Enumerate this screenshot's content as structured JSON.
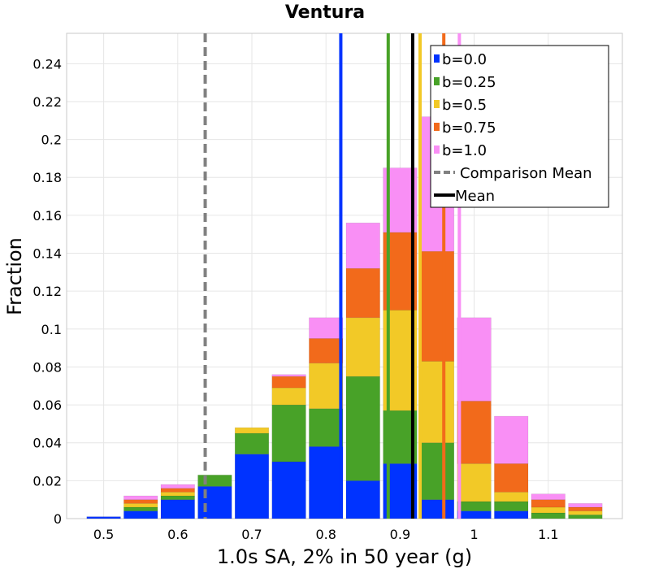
{
  "chart_data": {
    "type": "bar",
    "stacked": true,
    "title": "Ventura",
    "xlabel": "1.0s SA, 2% in 50 year (g)",
    "ylabel": "Fraction",
    "xlim": [
      0.45,
      1.2
    ],
    "ylim": [
      0,
      0.256
    ],
    "grid": true,
    "legend_position": "top-right",
    "x_ticks": [
      0.5,
      0.6,
      0.7,
      0.8,
      0.9,
      1.0,
      1.1
    ],
    "x_tick_labels": [
      "0.5",
      "0.6",
      "0.7",
      "0.8",
      "0.9",
      "1",
      "1.1"
    ],
    "y_ticks": [
      0,
      0.02,
      0.04,
      0.06,
      0.08,
      0.1,
      0.12,
      0.14,
      0.16,
      0.18,
      0.2,
      0.22,
      0.24
    ],
    "y_tick_labels": [
      "0",
      "0.02",
      "0.04",
      "0.06",
      "0.08",
      "0.1",
      "0.12",
      "0.14",
      "0.16",
      "0.18",
      "0.2",
      "0.22",
      "0.24"
    ],
    "bin_width": 0.05,
    "bin_centers": [
      0.5,
      0.55,
      0.6,
      0.65,
      0.7,
      0.75,
      0.8,
      0.85,
      0.9,
      0.95,
      1.0,
      1.05,
      1.1,
      1.15
    ],
    "series": [
      {
        "name": "b=0.0",
        "color": "#0033ff",
        "values": [
          0.001,
          0.004,
          0.01,
          0.017,
          0.034,
          0.03,
          0.038,
          0.02,
          0.029,
          0.01,
          0.004,
          0.004,
          0.0,
          0.0
        ]
      },
      {
        "name": "b=0.25",
        "color": "#48a228",
        "values": [
          0.0,
          0.002,
          0.002,
          0.006,
          0.011,
          0.03,
          0.02,
          0.055,
          0.028,
          0.03,
          0.005,
          0.005,
          0.003,
          0.002
        ]
      },
      {
        "name": "b=0.5",
        "color": "#f2c927",
        "values": [
          0.0,
          0.002,
          0.002,
          0.0,
          0.003,
          0.009,
          0.024,
          0.031,
          0.053,
          0.043,
          0.02,
          0.005,
          0.003,
          0.002
        ]
      },
      {
        "name": "b=0.75",
        "color": "#f26a1b",
        "values": [
          0.0,
          0.002,
          0.002,
          0.0,
          0.0,
          0.006,
          0.013,
          0.026,
          0.041,
          0.058,
          0.033,
          0.015,
          0.004,
          0.002
        ]
      },
      {
        "name": "b=1.0",
        "color": "#f98ff5",
        "values": [
          0.0,
          0.002,
          0.002,
          0.0,
          0.0,
          0.001,
          0.011,
          0.024,
          0.034,
          0.071,
          0.044,
          0.025,
          0.003,
          0.002
        ]
      }
    ],
    "vertical_lines": [
      {
        "name": "Comparison Mean",
        "x": 0.637,
        "color": "#808080",
        "style": "dashed"
      },
      {
        "series": "b=0.0",
        "x": 0.82,
        "color": "#0033ff",
        "style": "solid"
      },
      {
        "series": "b=0.25",
        "x": 0.884,
        "color": "#48a228",
        "style": "solid"
      },
      {
        "series": "b=0.5",
        "x": 0.927,
        "color": "#f2c927",
        "style": "solid"
      },
      {
        "series": "b=0.75",
        "x": 0.959,
        "color": "#f26a1b",
        "style": "solid"
      },
      {
        "series": "b=1.0",
        "x": 0.98,
        "color": "#f98ff5",
        "style": "solid"
      },
      {
        "name": "Mean",
        "x": 0.917,
        "color": "#000000",
        "style": "solid"
      }
    ],
    "legend": [
      {
        "label": "b=0.0",
        "color": "#0033ff",
        "kind": "box"
      },
      {
        "label": "b=0.25",
        "color": "#48a228",
        "kind": "box"
      },
      {
        "label": "b=0.5",
        "color": "#f2c927",
        "kind": "box"
      },
      {
        "label": "b=0.75",
        "color": "#f26a1b",
        "kind": "box"
      },
      {
        "label": "b=1.0",
        "color": "#f98ff5",
        "kind": "box"
      },
      {
        "label": "Comparison Mean",
        "color": "#808080",
        "kind": "dashed-line"
      },
      {
        "label": "Mean",
        "color": "#000000",
        "kind": "solid-line"
      }
    ]
  }
}
